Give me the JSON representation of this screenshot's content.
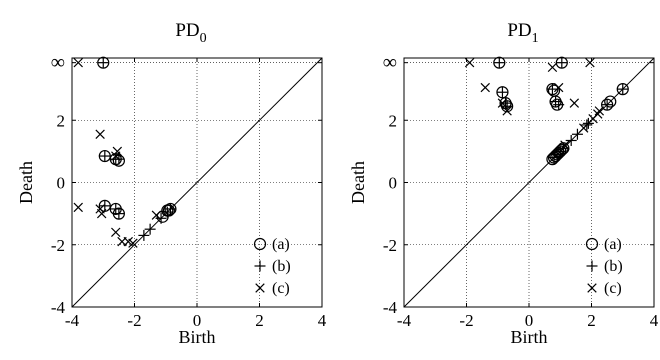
{
  "figure": {
    "background": "#ffffff",
    "ink": "#000000",
    "grid_color": "#000000"
  },
  "chart_data": [
    {
      "type": "scatter",
      "title_main": "PD",
      "title_sub": "0",
      "xlabel": "Birth",
      "ylabel": "Death",
      "xlim": [
        -4,
        4
      ],
      "ylim": [
        -4,
        4
      ],
      "xticks": [
        "-4",
        "-2",
        "0",
        "2",
        "4"
      ],
      "yticks": [
        "-4",
        "-2",
        "0",
        "2"
      ],
      "inf_label": "∞",
      "inf_value": 3.85,
      "grid": true,
      "diagonal": true,
      "legend": {
        "position": "bottom-right",
        "labels": [
          "(a)",
          "(b)",
          "(c)"
        ]
      },
      "series": [
        {
          "name": "(a)",
          "marker": "circle",
          "points": [
            [
              -3.0,
              3.85
            ],
            [
              -2.95,
              0.85
            ],
            [
              -2.6,
              0.75
            ],
            [
              -2.5,
              0.7
            ],
            [
              -2.95,
              -0.75
            ],
            [
              -2.6,
              -0.85
            ],
            [
              -2.5,
              -1.0
            ],
            [
              -1.1,
              -1.1
            ],
            [
              -0.95,
              -0.9
            ],
            [
              -0.9,
              -0.9
            ],
            [
              -0.85,
              -0.85
            ]
          ]
        },
        {
          "name": "(b)",
          "marker": "plus",
          "points": [
            [
              -3.0,
              3.85
            ],
            [
              -2.95,
              0.85
            ],
            [
              -2.6,
              0.75
            ],
            [
              -2.5,
              0.75
            ],
            [
              -2.95,
              -0.75
            ],
            [
              -2.6,
              -0.85
            ],
            [
              -2.5,
              -1.0
            ],
            [
              -1.7,
              -1.7
            ],
            [
              -1.5,
              -1.5
            ],
            [
              -1.15,
              -1.15
            ],
            [
              -0.95,
              -0.95
            ],
            [
              -0.85,
              -0.85
            ]
          ]
        },
        {
          "name": "(c)",
          "marker": "x",
          "points": [
            [
              -3.8,
              3.85
            ],
            [
              -3.1,
              1.55
            ],
            [
              -2.6,
              0.85
            ],
            [
              -2.55,
              1.0
            ],
            [
              -3.1,
              -0.85
            ],
            [
              -3.05,
              -1.0
            ],
            [
              -3.8,
              -0.8
            ],
            [
              -2.6,
              -1.6
            ],
            [
              -2.4,
              -1.9
            ],
            [
              -2.2,
              -1.9
            ],
            [
              -2.05,
              -1.95
            ],
            [
              -1.3,
              -1.05
            ]
          ]
        }
      ]
    },
    {
      "type": "scatter",
      "title_main": "PD",
      "title_sub": "1",
      "xlabel": "Birth",
      "ylabel": "Death",
      "xlim": [
        -4,
        4
      ],
      "ylim": [
        -4,
        4
      ],
      "xticks": [
        "-4",
        "-2",
        "0",
        "2",
        "4"
      ],
      "yticks": [
        "-4",
        "-2",
        "0",
        "2"
      ],
      "inf_label": "∞",
      "inf_value": 3.85,
      "grid": true,
      "diagonal": true,
      "legend": {
        "position": "bottom-right",
        "labels": [
          "(a)",
          "(b)",
          "(c)"
        ]
      },
      "series": [
        {
          "name": "(a)",
          "marker": "circle",
          "points": [
            [
              -0.95,
              3.85
            ],
            [
              1.05,
              3.85
            ],
            [
              -0.85,
              2.9
            ],
            [
              -0.75,
              2.55
            ],
            [
              -0.7,
              2.45
            ],
            [
              0.75,
              3.0
            ],
            [
              0.8,
              2.95
            ],
            [
              0.85,
              2.6
            ],
            [
              0.9,
              2.5
            ],
            [
              2.5,
              2.5
            ],
            [
              2.6,
              2.6
            ],
            [
              3.0,
              3.0
            ],
            [
              0.75,
              0.75
            ],
            [
              0.8,
              0.8
            ],
            [
              0.85,
              0.85
            ],
            [
              0.9,
              0.9
            ],
            [
              0.95,
              0.95
            ],
            [
              1.0,
              1.0
            ],
            [
              1.05,
              1.05
            ],
            [
              1.1,
              1.1
            ]
          ]
        },
        {
          "name": "(b)",
          "marker": "plus",
          "points": [
            [
              -0.95,
              3.85
            ],
            [
              1.05,
              3.85
            ],
            [
              -0.85,
              2.9
            ],
            [
              -0.75,
              2.55
            ],
            [
              -0.7,
              2.45
            ],
            [
              0.75,
              3.0
            ],
            [
              0.85,
              2.6
            ],
            [
              0.95,
              2.5
            ],
            [
              2.5,
              2.5
            ],
            [
              3.0,
              3.0
            ],
            [
              1.35,
              1.35
            ],
            [
              1.55,
              1.55
            ],
            [
              1.85,
              1.85
            ],
            [
              1.9,
              1.9
            ],
            [
              0.8,
              0.8
            ],
            [
              0.9,
              0.9
            ],
            [
              1.0,
              1.0
            ],
            [
              1.1,
              1.1
            ]
          ]
        },
        {
          "name": "(c)",
          "marker": "x",
          "points": [
            [
              -1.9,
              3.85
            ],
            [
              -1.4,
              3.05
            ],
            [
              -0.85,
              2.55
            ],
            [
              -0.7,
              2.3
            ],
            [
              0.75,
              3.7
            ],
            [
              0.95,
              3.05
            ],
            [
              1.95,
              3.85
            ],
            [
              1.45,
              2.55
            ],
            [
              2.25,
              2.3
            ],
            [
              1.15,
              1.2
            ],
            [
              1.75,
              1.75
            ],
            [
              2.05,
              2.05
            ],
            [
              2.2,
              2.2
            ],
            [
              0.85,
              0.85
            ]
          ]
        }
      ]
    }
  ]
}
